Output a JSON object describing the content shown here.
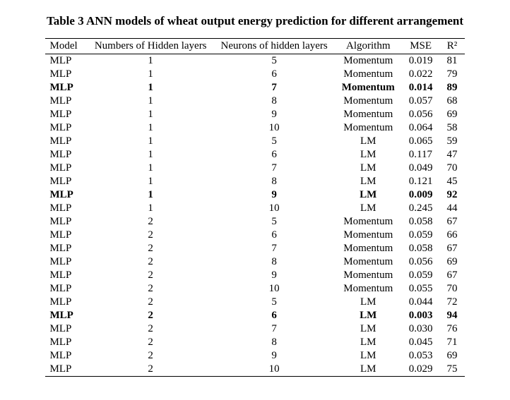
{
  "title": "Table 3 ANN models of wheat output energy prediction for different arrangement",
  "columns": [
    "Model",
    "Numbers of Hidden layers",
    "Neurons of hidden layers",
    "Algorithm",
    "MSE",
    "R²"
  ],
  "bold_row_indices": [
    2,
    10,
    19
  ],
  "rows": [
    [
      "MLP",
      "1",
      "5",
      "Momentum",
      "0.019",
      "81"
    ],
    [
      "MLP",
      "1",
      "6",
      "Momentum",
      "0.022",
      "79"
    ],
    [
      "MLP",
      "1",
      "7",
      "Momentum",
      "0.014",
      "89"
    ],
    [
      "MLP",
      "1",
      "8",
      "Momentum",
      "0.057",
      "68"
    ],
    [
      "MLP",
      "1",
      "9",
      "Momentum",
      "0.056",
      "69"
    ],
    [
      "MLP",
      "1",
      "10",
      "Momentum",
      "0.064",
      "58"
    ],
    [
      "MLP",
      "1",
      "5",
      "LM",
      "0.065",
      "59"
    ],
    [
      "MLP",
      "1",
      "6",
      "LM",
      "0.117",
      "47"
    ],
    [
      "MLP",
      "1",
      "7",
      "LM",
      "0.049",
      "70"
    ],
    [
      "MLP",
      "1",
      "8",
      "LM",
      "0.121",
      "45"
    ],
    [
      "MLP",
      "1",
      "9",
      "LM",
      "0.009",
      "92"
    ],
    [
      "MLP",
      "1",
      "10",
      "LM",
      "0.245",
      "44"
    ],
    [
      "MLP",
      "2",
      "5",
      "Momentum",
      "0.058",
      "67"
    ],
    [
      "MLP",
      "2",
      "6",
      "Momentum",
      "0.059",
      "66"
    ],
    [
      "MLP",
      "2",
      "7",
      "Momentum",
      "0.058",
      "67"
    ],
    [
      "MLP",
      "2",
      "8",
      "Momentum",
      "0.056",
      "69"
    ],
    [
      "MLP",
      "2",
      "9",
      "Momentum",
      "0.059",
      "67"
    ],
    [
      "MLP",
      "2",
      "10",
      "Momentum",
      "0.055",
      "70"
    ],
    [
      "MLP",
      "2",
      "5",
      "LM",
      "0.044",
      "72"
    ],
    [
      "MLP",
      "2",
      "6",
      "LM",
      "0.003",
      "94"
    ],
    [
      "MLP",
      "2",
      "7",
      "LM",
      "0.030",
      "76"
    ],
    [
      "MLP",
      "2",
      "8",
      "LM",
      "0.045",
      "71"
    ],
    [
      "MLP",
      "2",
      "9",
      "LM",
      "0.053",
      "69"
    ],
    [
      "MLP",
      "2",
      "10",
      "LM",
      "0.029",
      "75"
    ]
  ]
}
